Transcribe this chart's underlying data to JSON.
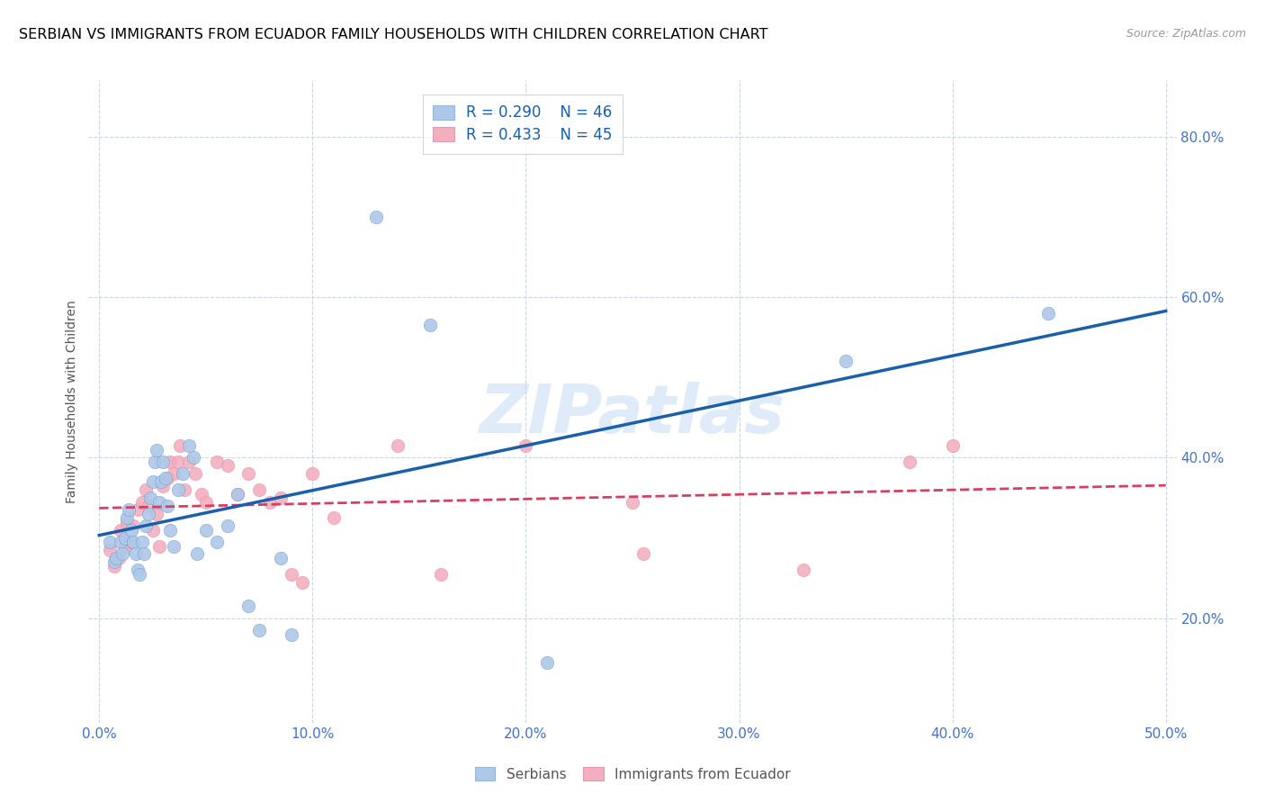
{
  "title": "SERBIAN VS IMMIGRANTS FROM ECUADOR FAMILY HOUSEHOLDS WITH CHILDREN CORRELATION CHART",
  "source": "Source: ZipAtlas.com",
  "ylabel": "Family Households with Children",
  "watermark": "ZIPatlas",
  "legend_r1": "R = 0.290",
  "legend_n1": "N = 46",
  "legend_r2": "R = 0.433",
  "legend_n2": "N = 45",
  "xlim": [
    -0.005,
    0.505
  ],
  "ylim": [
    0.07,
    0.87
  ],
  "yticks": [
    0.2,
    0.4,
    0.6,
    0.8
  ],
  "xticks": [
    0.0,
    0.1,
    0.2,
    0.3,
    0.4,
    0.5
  ],
  "color_serbian": "#adc8e8",
  "color_ecuador": "#f2afc0",
  "color_line_serbian": "#1a5fa8",
  "color_line_ecuador": "#d44060",
  "serbian_x": [
    0.005,
    0.007,
    0.008,
    0.01,
    0.011,
    0.012,
    0.013,
    0.014,
    0.015,
    0.016,
    0.017,
    0.018,
    0.019,
    0.02,
    0.021,
    0.022,
    0.023,
    0.024,
    0.025,
    0.026,
    0.027,
    0.028,
    0.029,
    0.03,
    0.031,
    0.032,
    0.033,
    0.035,
    0.037,
    0.039,
    0.042,
    0.044,
    0.046,
    0.05,
    0.055,
    0.06,
    0.065,
    0.07,
    0.075,
    0.085,
    0.09,
    0.13,
    0.155,
    0.21,
    0.35,
    0.445
  ],
  "serbian_y": [
    0.295,
    0.27,
    0.275,
    0.295,
    0.28,
    0.3,
    0.325,
    0.335,
    0.31,
    0.295,
    0.28,
    0.26,
    0.255,
    0.295,
    0.28,
    0.315,
    0.33,
    0.35,
    0.37,
    0.395,
    0.41,
    0.345,
    0.37,
    0.395,
    0.375,
    0.34,
    0.31,
    0.29,
    0.36,
    0.38,
    0.415,
    0.4,
    0.28,
    0.31,
    0.295,
    0.315,
    0.355,
    0.215,
    0.185,
    0.275,
    0.18,
    0.7,
    0.565,
    0.145,
    0.52,
    0.58
  ],
  "ecuador_x": [
    0.005,
    0.007,
    0.009,
    0.01,
    0.012,
    0.013,
    0.015,
    0.016,
    0.018,
    0.02,
    0.022,
    0.023,
    0.025,
    0.027,
    0.028,
    0.03,
    0.032,
    0.033,
    0.035,
    0.037,
    0.038,
    0.04,
    0.042,
    0.045,
    0.048,
    0.05,
    0.055,
    0.06,
    0.065,
    0.07,
    0.075,
    0.08,
    0.085,
    0.09,
    0.095,
    0.1,
    0.11,
    0.14,
    0.16,
    0.2,
    0.25,
    0.255,
    0.33,
    0.38,
    0.4
  ],
  "ecuador_y": [
    0.285,
    0.265,
    0.275,
    0.31,
    0.29,
    0.32,
    0.295,
    0.315,
    0.335,
    0.345,
    0.36,
    0.34,
    0.31,
    0.33,
    0.29,
    0.365,
    0.375,
    0.395,
    0.38,
    0.395,
    0.415,
    0.36,
    0.395,
    0.38,
    0.355,
    0.345,
    0.395,
    0.39,
    0.355,
    0.38,
    0.36,
    0.345,
    0.35,
    0.255,
    0.245,
    0.38,
    0.325,
    0.415,
    0.255,
    0.415,
    0.345,
    0.28,
    0.26,
    0.395,
    0.415
  ],
  "background_color": "#ffffff",
  "grid_color": "#c8d4e8",
  "title_fontsize": 11.5,
  "axis_label_fontsize": 10,
  "tick_fontsize": 11
}
